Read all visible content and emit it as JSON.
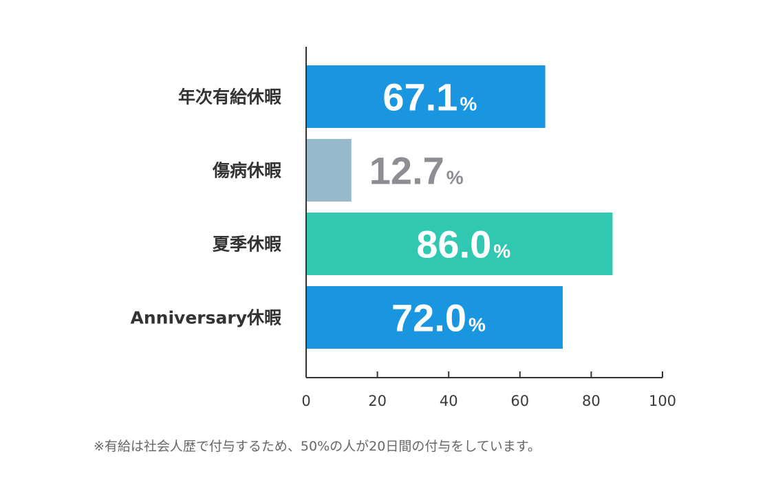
{
  "chart_data": {
    "type": "bar",
    "orientation": "horizontal",
    "categories": [
      "年次有給休暇",
      "傷病休暇",
      "夏季休暇",
      "Anniversary休暇"
    ],
    "values": [
      67.1,
      12.7,
      86.0,
      72.0
    ],
    "value_labels": [
      "67.1",
      "12.7",
      "86.0",
      "72.0"
    ],
    "value_suffix": "%",
    "bar_colors": [
      "#1a96e0",
      "#97b9cc",
      "#31c8b2",
      "#1a96e0"
    ],
    "value_label_colors": [
      "#ffffff",
      "#8c8e93",
      "#ffffff",
      "#ffffff"
    ],
    "value_label_inside": [
      true,
      false,
      true,
      true
    ],
    "xlim": [
      0,
      100
    ],
    "xticks": [
      0,
      20,
      40,
      60,
      80,
      100
    ],
    "grid": false
  },
  "footnote": "※有給は社会人歴で付与するため、50%の人が20日間の付与をしています。"
}
